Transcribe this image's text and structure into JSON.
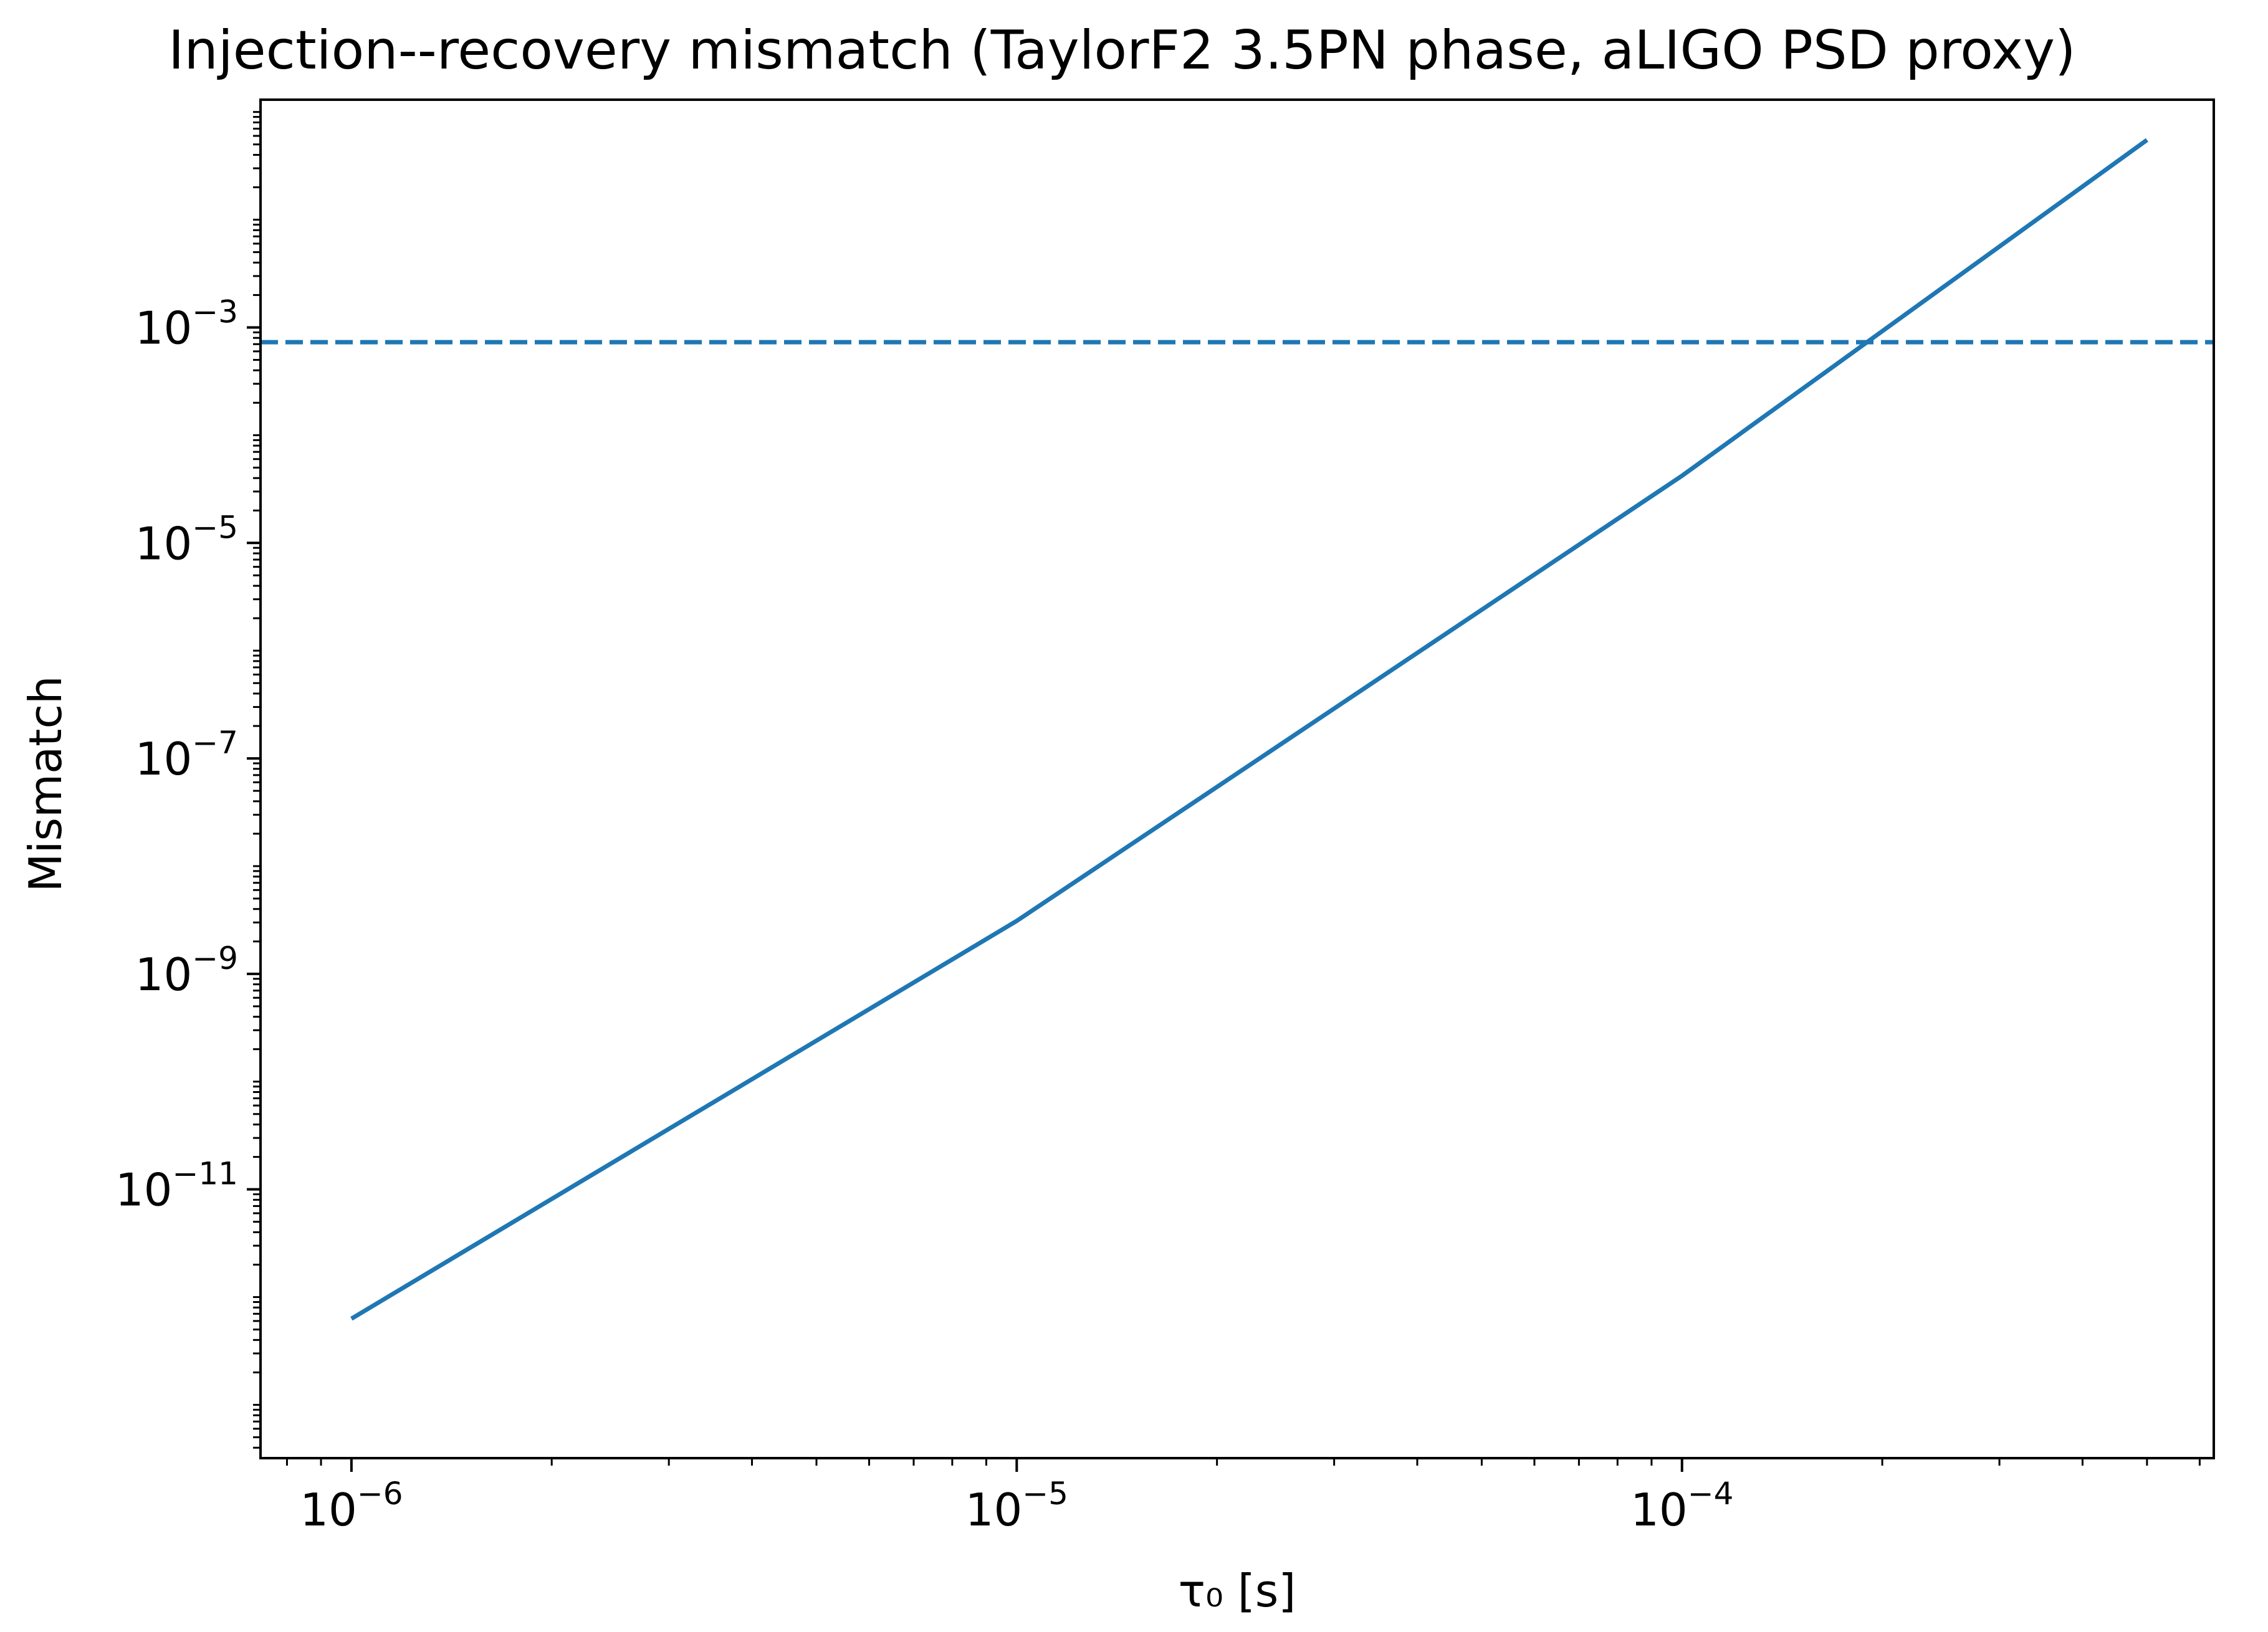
{
  "chart_data": {
    "type": "line",
    "title": "Injection--recovery mismatch (TaylorF2 3.5PN phase, aLIGO PSD proxy)",
    "xlabel": "τ₀ [s]",
    "ylabel": "Mismatch",
    "xscale": "log",
    "yscale": "log",
    "xlim": [
      7.3e-07,
      0.00063
    ],
    "ylim": [
      3.2e-14,
      0.13
    ],
    "grid": false,
    "x_ticks": [
      {
        "value": 1e-06,
        "base": "10",
        "exp": "−6"
      },
      {
        "value": 1e-05,
        "base": "10",
        "exp": "−5"
      },
      {
        "value": 0.0001,
        "base": "10",
        "exp": "−4"
      }
    ],
    "y_ticks": [
      {
        "value": 1e-11,
        "base": "10",
        "exp": "−11"
      },
      {
        "value": 1e-09,
        "base": "10",
        "exp": "−9"
      },
      {
        "value": 1e-07,
        "base": "10",
        "exp": "−7"
      },
      {
        "value": 1e-05,
        "base": "10",
        "exp": "−5"
      },
      {
        "value": 0.001,
        "base": "10",
        "exp": "−3"
      }
    ],
    "series": [
      {
        "style": "solid",
        "color": "#1f77b4",
        "x": [
          1e-06,
          1e-05,
          0.0001,
          0.0005
        ],
        "y": [
          6.3e-13,
          3.1e-09,
          4.2e-05,
          0.055
        ]
      }
    ],
    "reference_lines": [
      {
        "orientation": "horizontal",
        "y": 0.00073,
        "style": "dashed",
        "color": "#1f77b4"
      }
    ]
  }
}
